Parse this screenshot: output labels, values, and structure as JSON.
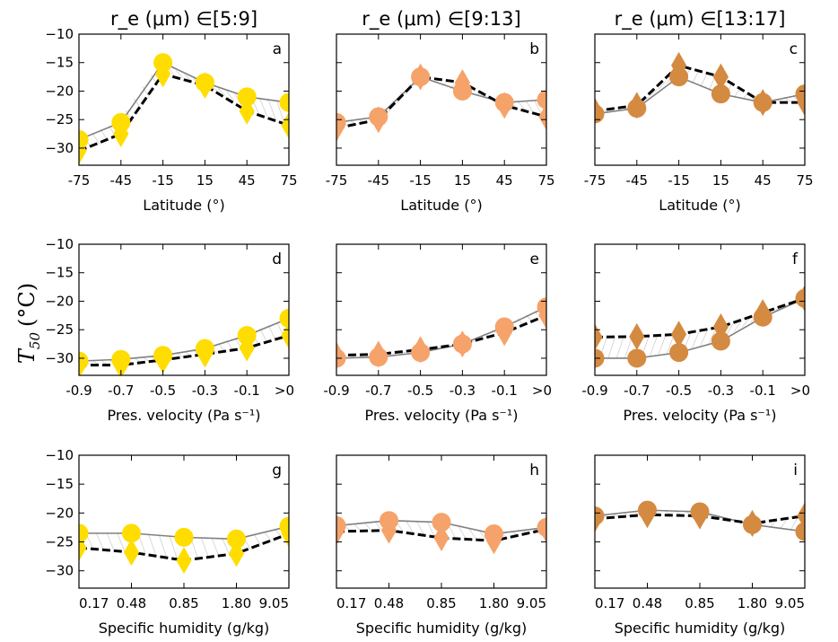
{
  "figure": {
    "y_axis_label": "T",
    "y_axis_label_sub": "50",
    "y_axis_label_unit": "(°C)",
    "column_titles": [
      "r_e (μm) ∈[5:9]",
      "r_e (μm) ∈[9:13]",
      "r_e (μm) ∈[13:17]"
    ],
    "row_xlabels": [
      "Latitude (°)",
      "Pres. velocity (Pa s⁻¹)",
      "Specific humidity (g/kg)"
    ],
    "colors": [
      "#ffdd00",
      "#f5a36a",
      "#d48a40"
    ],
    "line_color_circle": "#808080",
    "line_color_diamond": "#000000"
  },
  "chart_data": [
    {
      "panel": "a",
      "type": "line",
      "ylim": [
        -33,
        -10
      ],
      "yticks": [
        -10,
        -15,
        -20,
        -25,
        -30
      ],
      "categories": [
        "-75",
        "-45",
        "-15",
        "15",
        "45",
        "75"
      ],
      "series": [
        {
          "marker": "circle",
          "values": [
            -28.5,
            -25.5,
            -15,
            -18.5,
            -21,
            -22
          ]
        },
        {
          "marker": "diamond",
          "values": [
            -30.5,
            -27.5,
            -17,
            -19,
            -23.5,
            -26
          ]
        }
      ]
    },
    {
      "panel": "b",
      "type": "line",
      "ylim": [
        -33,
        -10
      ],
      "yticks": [
        -10,
        -15,
        -20,
        -25,
        -30
      ],
      "categories": [
        "-75",
        "-45",
        "-15",
        "15",
        "45",
        "75"
      ],
      "series": [
        {
          "marker": "circle",
          "values": [
            -25.5,
            -24.5,
            -17.5,
            -20,
            -22,
            -21.5
          ]
        },
        {
          "marker": "diamond",
          "values": [
            -26.5,
            -25,
            -17.5,
            -18.5,
            -22.5,
            -24.5
          ]
        }
      ]
    },
    {
      "panel": "c",
      "type": "line",
      "ylim": [
        -33,
        -10
      ],
      "yticks": [
        -10,
        -15,
        -20,
        -25,
        -30
      ],
      "categories": [
        "-75",
        "-45",
        "-15",
        "15",
        "45",
        "75"
      ],
      "series": [
        {
          "marker": "circle",
          "values": [
            -24,
            -23,
            -17.5,
            -20.5,
            -22,
            -20.5
          ]
        },
        {
          "marker": "diamond",
          "values": [
            -23.5,
            -22.5,
            -15.5,
            -17.5,
            -22,
            -22
          ]
        }
      ]
    },
    {
      "panel": "d",
      "type": "line",
      "ylim": [
        -33,
        -10
      ],
      "yticks": [
        -10,
        -15,
        -20,
        -25,
        -30
      ],
      "categories": [
        "-0.9",
        "-0.7",
        "-0.5",
        "-0.3",
        "-0.1",
        ">0"
      ],
      "series": [
        {
          "marker": "circle",
          "values": [
            -30.5,
            -30.2,
            -29.5,
            -28.3,
            -26,
            -23
          ]
        },
        {
          "marker": "diamond",
          "values": [
            -31.2,
            -31.2,
            -30.3,
            -29.3,
            -28.2,
            -26
          ]
        }
      ]
    },
    {
      "panel": "e",
      "type": "line",
      "ylim": [
        -33,
        -10
      ],
      "yticks": [
        -10,
        -15,
        -20,
        -25,
        -30
      ],
      "categories": [
        "-0.9",
        "-0.7",
        "-0.5",
        "-0.3",
        "-0.1",
        ">0"
      ],
      "series": [
        {
          "marker": "circle",
          "values": [
            -30,
            -29.8,
            -29,
            -27.5,
            -24.5,
            -21
          ]
        },
        {
          "marker": "diamond",
          "values": [
            -29.5,
            -29.3,
            -28.5,
            -27.5,
            -25.5,
            -22.5
          ]
        }
      ]
    },
    {
      "panel": "f",
      "type": "line",
      "ylim": [
        -33,
        -10
      ],
      "yticks": [
        -10,
        -15,
        -20,
        -25,
        -30
      ],
      "categories": [
        "-0.9",
        "-0.7",
        "-0.5",
        "-0.3",
        "-0.1",
        ">0"
      ],
      "series": [
        {
          "marker": "circle",
          "values": [
            -30,
            -30,
            -29,
            -27,
            -22.8,
            -19.5
          ]
        },
        {
          "marker": "diamond",
          "values": [
            -26.3,
            -26.2,
            -25.8,
            -24.5,
            -22,
            -19.5
          ]
        }
      ]
    },
    {
      "panel": "g",
      "type": "line",
      "ylim": [
        -33,
        -10
      ],
      "yticks": [
        -10,
        -15,
        -20,
        -25,
        -30
      ],
      "categories": [
        "0.17",
        "0.48",
        "0.85",
        "1.80",
        "9.05"
      ],
      "series": [
        {
          "marker": "circle",
          "values": [
            -23.5,
            -23.5,
            -24.2,
            -24.5,
            -22.3
          ]
        },
        {
          "marker": "diamond",
          "values": [
            -26,
            -26.8,
            -28.2,
            -27,
            -23.6
          ]
        }
      ]
    },
    {
      "panel": "h",
      "type": "line",
      "ylim": [
        -33,
        -10
      ],
      "yticks": [
        -10,
        -15,
        -20,
        -25,
        -30
      ],
      "categories": [
        "0.17",
        "0.48",
        "0.85",
        "1.80",
        "9.05"
      ],
      "series": [
        {
          "marker": "circle",
          "values": [
            -22.2,
            -21.3,
            -21.6,
            -23.6,
            -22.5
          ]
        },
        {
          "marker": "diamond",
          "values": [
            -23.2,
            -23,
            -24.3,
            -24.8,
            -22.8
          ]
        }
      ]
    },
    {
      "panel": "i",
      "type": "line",
      "ylim": [
        -33,
        -10
      ],
      "yticks": [
        -10,
        -15,
        -20,
        -25,
        -30
      ],
      "categories": [
        "0.17",
        "0.48",
        "0.85",
        "1.80",
        "9.05"
      ],
      "series": [
        {
          "marker": "circle",
          "values": [
            -20.5,
            -19.5,
            -19.8,
            -22,
            -23.2
          ]
        },
        {
          "marker": "diamond",
          "values": [
            -21,
            -20.3,
            -20.5,
            -21.8,
            -20.5
          ]
        }
      ]
    }
  ]
}
